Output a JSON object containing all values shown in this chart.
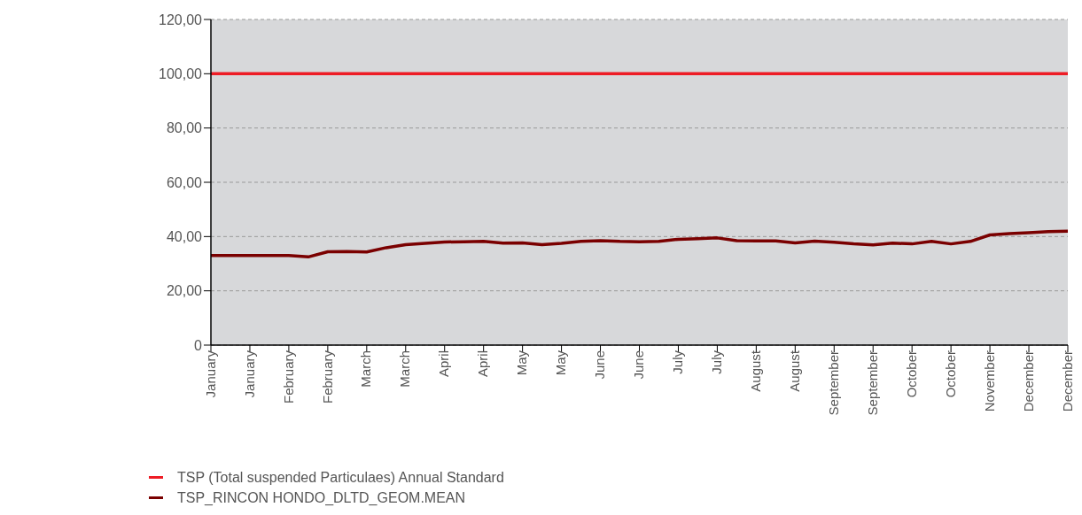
{
  "chart_data": {
    "type": "line",
    "categories": [
      "January",
      null,
      "January",
      null,
      "February",
      null,
      "February",
      null,
      "March",
      null,
      "March",
      null,
      "April",
      null,
      "April",
      null,
      "May",
      null,
      "May",
      null,
      "June",
      null,
      "June",
      null,
      "July",
      null,
      "July",
      null,
      "August",
      null,
      "August",
      null,
      "September",
      null,
      "September",
      null,
      "October",
      null,
      "October",
      null,
      "November",
      null,
      "December",
      null,
      "December"
    ],
    "ylim": [
      0,
      120
    ],
    "yticks": [
      {
        "value": 0,
        "label": "0"
      },
      {
        "value": 20,
        "label": "20,00"
      },
      {
        "value": 40,
        "label": "40,00"
      },
      {
        "value": 60,
        "label": "60,00"
      },
      {
        "value": 80,
        "label": "80,00"
      },
      {
        "value": 100,
        "label": "100,00"
      },
      {
        "value": 120,
        "label": "120,00"
      }
    ],
    "grid": "y",
    "legend": "bottom left",
    "marker": "none",
    "line_style": "solid",
    "series": [
      {
        "name": "TSP (Total suspended Particulaes) Annual Standard",
        "color": "#ee1c25",
        "values": [
          100,
          100,
          100,
          100,
          100,
          100,
          100,
          100,
          100,
          100,
          100,
          100,
          100,
          100,
          100,
          100,
          100,
          100,
          100,
          100,
          100,
          100,
          100,
          100,
          100,
          100,
          100,
          100,
          100,
          100,
          100,
          100,
          100,
          100,
          100,
          100,
          100,
          100,
          100,
          100,
          100,
          100,
          100,
          100,
          100
        ]
      },
      {
        "name": "TSP_RINCON HONDO_DLTD_GEOM.MEAN",
        "color": "#7a0000",
        "values": [
          33,
          33,
          33,
          33,
          33,
          32.5,
          34.4,
          34.5,
          34.3,
          35.9,
          37.0,
          37.5,
          38.0,
          38.1,
          38.2,
          37.6,
          37.7,
          37.0,
          37.5,
          38.2,
          38.5,
          38.2,
          38.1,
          38.2,
          39.0,
          39.2,
          39.5,
          38.5,
          38.4,
          38.4,
          37.7,
          38.3,
          37.9,
          37.3,
          36.9,
          37.6,
          37.3,
          38.2,
          37.3,
          38.2,
          40.6,
          41.1,
          41.4,
          41.8,
          42.0
        ]
      }
    ]
  }
}
